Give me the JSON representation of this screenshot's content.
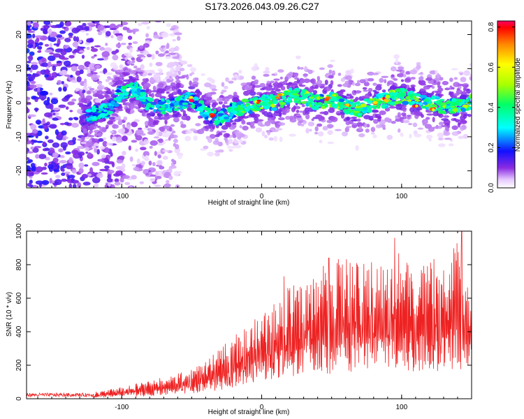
{
  "title": "S173.2026.043.09.26.C27",
  "colors": {
    "snr_line": "#ee2222",
    "frame": "#000000"
  },
  "chart_data": [
    {
      "type": "heatmap",
      "name": "spectrogram",
      "xlabel": "Height of straight line (km)",
      "ylabel": "Frequency (Hz)",
      "xlim": [
        -168,
        150
      ],
      "ylim": [
        -25,
        24
      ],
      "xticks": [
        -100,
        0,
        100
      ],
      "yticks": [
        -20,
        -10,
        0,
        10,
        20
      ],
      "ridge": {
        "x": [
          -125,
          -110,
          -100,
          -90,
          -80,
          -70,
          -60,
          -50,
          -40,
          -30,
          -20,
          -10,
          0,
          10,
          20,
          30,
          40,
          50,
          60,
          70,
          80,
          90,
          100,
          110,
          120,
          130,
          140,
          150
        ],
        "y": [
          -4,
          -2,
          3,
          4,
          -1,
          -1,
          0,
          1,
          -3,
          -5,
          -2,
          -1,
          0,
          0,
          2,
          2,
          0,
          1,
          -1,
          -2,
          0,
          1,
          2,
          1,
          0,
          -1,
          -1,
          0
        ]
      },
      "colorbar": {
        "label": "Normalized spectral amplitude",
        "range": [
          0,
          0.83
        ],
        "ticks": [
          0.0,
          0.2,
          0.4,
          0.6,
          0.8
        ],
        "tick_labels": [
          "0.0",
          "0.2",
          "0.4",
          "0.6",
          "0.8"
        ]
      }
    },
    {
      "type": "line",
      "name": "snr",
      "xlabel": "Height of straight line (km)",
      "ylabel": "SNR (10 * v/v)",
      "xlim": [
        -168,
        150
      ],
      "ylim": [
        0,
        1000
      ],
      "xticks": [
        -100,
        0,
        100
      ],
      "yticks": [
        0,
        200,
        400,
        600,
        800,
        1000
      ],
      "envelope": {
        "x": [
          -168,
          -120,
          -100,
          -80,
          -60,
          -40,
          -30,
          -20,
          -10,
          0,
          10,
          20,
          30,
          40,
          50,
          60,
          70,
          80,
          90,
          100,
          110,
          120,
          130,
          140,
          150
        ],
        "upper": [
          35,
          40,
          70,
          110,
          150,
          220,
          300,
          380,
          450,
          500,
          580,
          680,
          700,
          780,
          820,
          860,
          800,
          830,
          820,
          900,
          750,
          850,
          820,
          950,
          650
        ],
        "lower": [
          5,
          5,
          10,
          15,
          25,
          40,
          50,
          70,
          80,
          100,
          120,
          130,
          150,
          170,
          140,
          160,
          150,
          170,
          160,
          170,
          160,
          170,
          150,
          170,
          180
        ]
      },
      "peaks": [
        [
          16,
          730
        ],
        [
          48,
          840
        ],
        [
          95,
          960
        ],
        [
          143,
          1000
        ]
      ]
    }
  ]
}
